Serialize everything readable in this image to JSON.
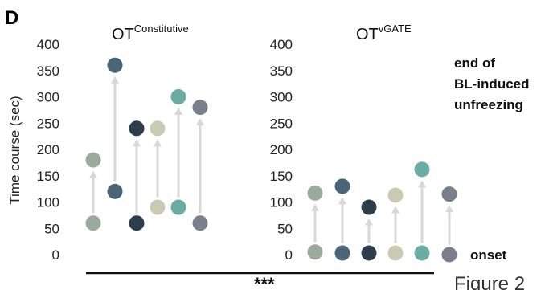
{
  "panel_label": "D",
  "figure_caption": "Figure 2",
  "significance": "***",
  "annotations": {
    "end_line1": "end of",
    "end_line2": "BL-induced",
    "end_line3": "unfreezing",
    "onset": "onset"
  },
  "colors": [
    "#9aaa9d",
    "#4a6578",
    "#2c3e4b",
    "#c8cbb2",
    "#6aaba2",
    "#7b7f8c"
  ],
  "chart_data": {
    "type": "scatter",
    "ylabel": "Time course (sec)",
    "ylim": [
      0,
      400
    ],
    "yticks": [
      0,
      50,
      100,
      150,
      200,
      250,
      300,
      350,
      400
    ],
    "grid": false,
    "legend": "none",
    "panels": [
      {
        "title_main": "OT",
        "title_sup": "Constitutive",
        "pairs": [
          {
            "onset": 60,
            "end": 180
          },
          {
            "onset": 120,
            "end": 360
          },
          {
            "onset": 60,
            "end": 240
          },
          {
            "onset": 90,
            "end": 240
          },
          {
            "onset": 90,
            "end": 300
          },
          {
            "onset": 60,
            "end": 280
          }
        ]
      },
      {
        "title_main": "OT",
        "title_sup": "vGATE",
        "pairs": [
          {
            "onset": 5,
            "end": 117
          },
          {
            "onset": 3,
            "end": 130
          },
          {
            "onset": 3,
            "end": 90
          },
          {
            "onset": 3,
            "end": 113
          },
          {
            "onset": 3,
            "end": 162
          },
          {
            "onset": 0,
            "end": 115
          }
        ]
      }
    ]
  }
}
